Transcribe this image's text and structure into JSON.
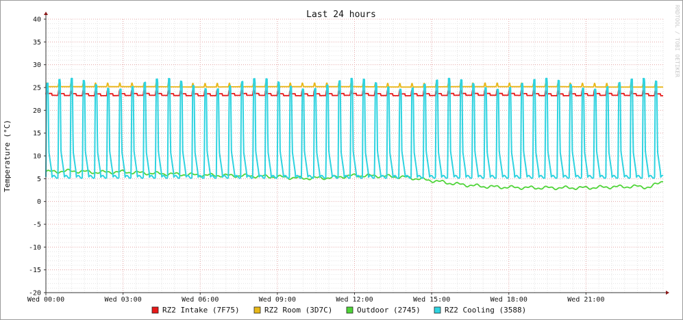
{
  "chart_data": {
    "type": "line",
    "title": "Last 24 hours",
    "ylabel": "Temperature (°C)",
    "xlabel": "",
    "watermark": "RRDTOOL / TOBI OETIKER",
    "ylim": [
      -20,
      40
    ],
    "yticks": [
      40,
      35,
      30,
      25,
      20,
      15,
      10,
      5,
      0,
      -5,
      -10,
      -15,
      -20
    ],
    "ytick_labels": [
      "40",
      "35",
      "30",
      "25",
      "20",
      "15",
      "10",
      "5",
      "0",
      "-5",
      "-10",
      "-15",
      "-20"
    ],
    "xlim_hours": [
      0,
      24
    ],
    "xticks_hours": [
      0,
      3,
      6,
      9,
      12,
      15,
      18,
      21
    ],
    "xtick_labels": [
      "Wed 00:00",
      "Wed 03:00",
      "Wed 06:00",
      "Wed 09:00",
      "Wed 12:00",
      "Wed 15:00",
      "Wed 18:00",
      "Wed 21:00"
    ],
    "grid": true,
    "legend_position": "bottom",
    "series": [
      {
        "name": "RZ2 Intake (7F75)",
        "color": "#e81818",
        "x": [
          0,
          2,
          4,
          6,
          8,
          10,
          12,
          14,
          16,
          18,
          20,
          22,
          24
        ],
        "y": [
          23.5,
          23.4,
          23.5,
          23.4,
          23.5,
          23.4,
          23.5,
          23.4,
          23.5,
          23.5,
          23.4,
          23.5,
          23.4
        ]
      },
      {
        "name": "RZ2 Room (3D7C)",
        "color": "#e8b818",
        "x": [
          0,
          2,
          4,
          6,
          8,
          10,
          12,
          14,
          16,
          18,
          20,
          22,
          24
        ],
        "y": [
          25.2,
          25.2,
          25.2,
          25.1,
          25.2,
          25.2,
          25.2,
          25.1,
          25.2,
          25.2,
          25.2,
          25.1,
          25.1
        ]
      },
      {
        "name": "Outdoor (2745)",
        "color": "#4ed437",
        "x": [
          0,
          1,
          2,
          3,
          4,
          5,
          6,
          7,
          8,
          9,
          10,
          11,
          12,
          13,
          14,
          15,
          16,
          17,
          18,
          19,
          20,
          21,
          22,
          23,
          23.5,
          24
        ],
        "y": [
          6.5,
          6.7,
          6.4,
          6.5,
          6.2,
          6.0,
          5.8,
          5.7,
          5.6,
          5.4,
          5.1,
          5.2,
          5.7,
          5.6,
          5.3,
          4.6,
          3.8,
          3.3,
          3.1,
          3.0,
          3.0,
          3.0,
          3.2,
          3.3,
          3.1,
          4.6
        ]
      },
      {
        "name": "RZ2 Cooling (3588)",
        "color": "#2ed3e0",
        "x": [
          0,
          24
        ],
        "y": [
          5.5,
          5.5
        ],
        "min": 5.4,
        "max": 27.0
      }
    ]
  }
}
